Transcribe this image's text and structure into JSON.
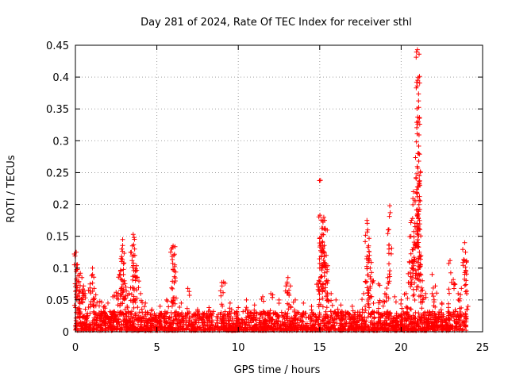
{
  "chart_data": {
    "type": "scatter",
    "title": "Day 281 of 2024, Rate Of TEC Index for receiver sthl",
    "xlabel": "GPS time / hours",
    "ylabel": "ROTI / TECUs",
    "xlim": [
      0,
      25
    ],
    "ylim": [
      0,
      0.45
    ],
    "x_ticks": [
      0,
      5,
      10,
      15,
      20,
      25
    ],
    "x_tick_labels": [
      "0",
      "5",
      "10",
      "15",
      "20",
      "25"
    ],
    "y_ticks": [
      0,
      0.05,
      0.1,
      0.15,
      0.2,
      0.25,
      0.3,
      0.35,
      0.4,
      0.45
    ],
    "y_tick_labels": [
      "0",
      "0.05",
      "0.1",
      "0.15",
      "0.2",
      "0.25",
      "0.3",
      "0.35",
      "0.4",
      "0.45"
    ],
    "grid": true,
    "marker": "+",
    "series": [
      {
        "name": "ROTI",
        "color": "#ff0000",
        "points": [
          [
            0.05,
            0.125
          ],
          [
            0.08,
            0.105
          ],
          [
            0.12,
            0.098
          ],
          [
            0.15,
            0.088
          ],
          [
            0.2,
            0.078
          ],
          [
            0.25,
            0.065
          ],
          [
            0.3,
            0.092
          ],
          [
            0.4,
            0.085
          ],
          [
            0.5,
            0.072
          ],
          [
            0.6,
            0.06
          ],
          [
            0.9,
            0.075
          ],
          [
            1.0,
            0.088
          ],
          [
            1.05,
            0.1
          ],
          [
            1.15,
            0.068
          ],
          [
            1.25,
            0.058
          ],
          [
            1.5,
            0.048
          ],
          [
            1.8,
            0.04
          ],
          [
            2.0,
            0.045
          ],
          [
            2.3,
            0.055
          ],
          [
            2.5,
            0.062
          ],
          [
            2.7,
            0.09
          ],
          [
            2.8,
            0.115
          ],
          [
            2.85,
            0.13
          ],
          [
            2.9,
            0.145
          ],
          [
            2.95,
            0.098
          ],
          [
            3.0,
            0.08
          ],
          [
            3.1,
            0.07
          ],
          [
            3.3,
            0.06
          ],
          [
            3.5,
            0.135
          ],
          [
            3.55,
            0.153
          ],
          [
            3.6,
            0.148
          ],
          [
            3.65,
            0.12
          ],
          [
            3.7,
            0.095
          ],
          [
            3.8,
            0.085
          ],
          [
            4.0,
            0.06
          ],
          [
            4.3,
            0.045
          ],
          [
            4.7,
            0.035
          ],
          [
            5.2,
            0.04
          ],
          [
            5.6,
            0.05
          ],
          [
            5.9,
            0.13
          ],
          [
            6.0,
            0.135
          ],
          [
            6.05,
            0.12
          ],
          [
            6.1,
            0.105
          ],
          [
            6.5,
            0.045
          ],
          [
            6.9,
            0.068
          ],
          [
            7.5,
            0.035
          ],
          [
            8.2,
            0.038
          ],
          [
            9.0,
            0.072
          ],
          [
            9.1,
            0.078
          ],
          [
            9.5,
            0.045
          ],
          [
            10.0,
            0.038
          ],
          [
            10.5,
            0.05
          ],
          [
            11.0,
            0.042
          ],
          [
            11.5,
            0.055
          ],
          [
            12.0,
            0.06
          ],
          [
            12.5,
            0.05
          ],
          [
            13.0,
            0.078
          ],
          [
            13.05,
            0.085
          ],
          [
            13.2,
            0.072
          ],
          [
            13.5,
            0.05
          ],
          [
            14.0,
            0.045
          ],
          [
            14.5,
            0.04
          ],
          [
            14.9,
            0.075
          ],
          [
            15.0,
            0.1
          ],
          [
            15.05,
            0.238
          ],
          [
            15.1,
            0.15
          ],
          [
            15.15,
            0.13
          ],
          [
            15.2,
            0.172
          ],
          [
            15.25,
            0.18
          ],
          [
            15.3,
            0.175
          ],
          [
            15.35,
            0.16
          ],
          [
            15.4,
            0.12
          ],
          [
            15.5,
            0.08
          ],
          [
            15.7,
            0.06
          ],
          [
            16.0,
            0.05
          ],
          [
            16.3,
            0.042
          ],
          [
            17.0,
            0.04
          ],
          [
            17.7,
            0.06
          ],
          [
            17.9,
            0.175
          ],
          [
            17.95,
            0.16
          ],
          [
            18.0,
            0.135
          ],
          [
            18.05,
            0.12
          ],
          [
            18.1,
            0.1
          ],
          [
            18.3,
            0.08
          ],
          [
            18.6,
            0.075
          ],
          [
            19.0,
            0.06
          ],
          [
            19.2,
            0.16
          ],
          [
            19.3,
            0.198
          ],
          [
            19.6,
            0.055
          ],
          [
            20.0,
            0.05
          ],
          [
            20.3,
            0.06
          ],
          [
            20.5,
            0.11
          ],
          [
            20.6,
            0.15
          ],
          [
            20.7,
            0.178
          ],
          [
            20.75,
            0.22
          ],
          [
            20.85,
            0.165
          ],
          [
            20.95,
            0.218
          ],
          [
            21.0,
            0.443
          ],
          [
            21.02,
            0.395
          ],
          [
            21.05,
            0.33
          ],
          [
            21.07,
            0.28
          ],
          [
            21.1,
            0.162
          ],
          [
            21.12,
            0.125
          ],
          [
            21.2,
            0.105
          ],
          [
            21.3,
            0.08
          ],
          [
            21.5,
            0.06
          ],
          [
            21.9,
            0.09
          ],
          [
            22.1,
            0.072
          ],
          [
            22.5,
            0.045
          ],
          [
            23.0,
            0.112
          ],
          [
            23.2,
            0.082
          ],
          [
            23.5,
            0.06
          ],
          [
            23.7,
            0.068
          ],
          [
            23.9,
            0.14
          ],
          [
            23.95,
            0.125
          ],
          [
            24.0,
            0.11
          ]
        ],
        "dense_band": {
          "x_range": [
            0,
            24
          ],
          "y_range": [
            0,
            0.03
          ],
          "note": "continuous band of low ROTI values across the whole day"
        }
      }
    ]
  }
}
